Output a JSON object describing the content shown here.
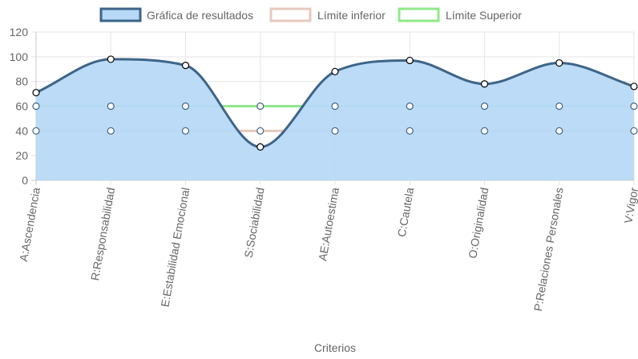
{
  "chart_data": {
    "type": "line",
    "categories": [
      "A:Ascendencia",
      "R:Responsabilidad",
      "E:Estabilidad Emocional",
      "S:Sociabilidad",
      "AE:Autoestima",
      "C:Cautela",
      "O:Originalidad",
      "P:Relaciones Personales",
      "V:Vigor"
    ],
    "series": [
      {
        "name": "Gráfica de resultados",
        "values": [
          71,
          98,
          93,
          27,
          88,
          97,
          78,
          95,
          76
        ],
        "color": "#3e6489",
        "fill": "#b7d9f7"
      },
      {
        "name": "Límite inferior",
        "values": [
          40,
          40,
          40,
          40,
          40,
          40,
          40,
          40,
          40
        ],
        "color": "#e6c9bd"
      },
      {
        "name": "Límite Superior",
        "values": [
          60,
          60,
          60,
          60,
          60,
          60,
          60,
          60,
          60
        ],
        "color": "#90e88a"
      }
    ],
    "xlabel": "Criterios",
    "ylabel": "",
    "ylim": [
      0,
      120
    ],
    "yticks": [
      "0",
      "20",
      "40",
      "60",
      "80",
      "100",
      "120"
    ],
    "grid": true,
    "legend_position": "top"
  }
}
